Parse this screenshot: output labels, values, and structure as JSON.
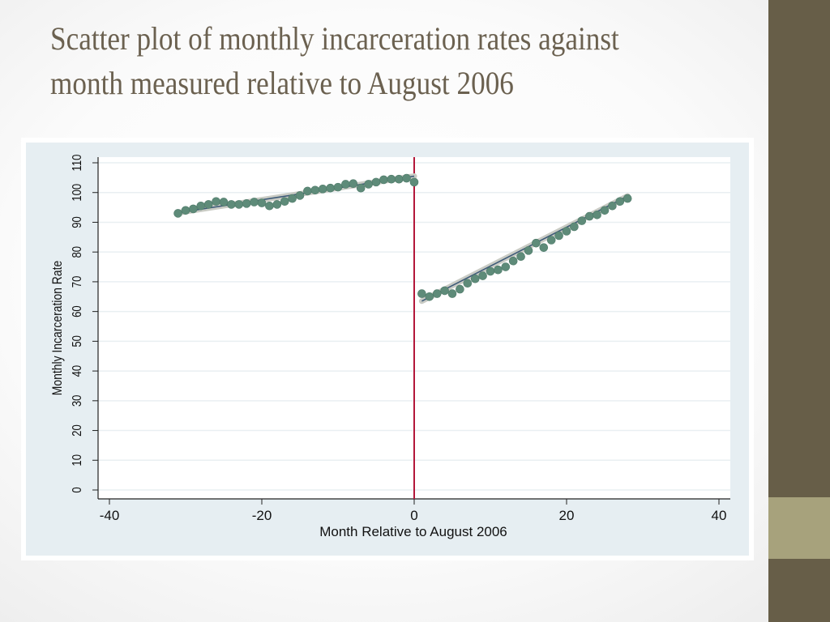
{
  "slide": {
    "title": "Scatter plot of monthly incarceration rates against month measured relative to August 2006",
    "colors": {
      "title": "#6b6150",
      "sidebar": "#675e48",
      "sidebar_accent": "#a7a27c",
      "chart_background": "#e6eef2",
      "plot_background": "#ffffff",
      "marker": "#5e8b79",
      "cutoff_line": "#b3173a"
    }
  },
  "chart_data": {
    "type": "scatter",
    "title": "",
    "xlabel": "Month Relative to August 2006",
    "ylabel": "Monthly Incarceration Rate",
    "xlim": [
      -40,
      40
    ],
    "ylim": [
      0,
      110
    ],
    "xticks": [
      -40,
      -20,
      0,
      20,
      40
    ],
    "yticks": [
      0,
      10,
      20,
      30,
      40,
      50,
      60,
      70,
      80,
      90,
      100,
      110
    ],
    "grid": true,
    "legend": "none",
    "vertical_line": {
      "x": 0,
      "color": "#b3173a"
    },
    "series": [
      {
        "points": [
          [
            -31,
            93.0
          ],
          [
            -30,
            94.0
          ],
          [
            -29,
            94.5
          ],
          [
            -28,
            95.5
          ],
          [
            -27,
            96.0
          ],
          [
            -26,
            97.0
          ],
          [
            -25,
            96.8
          ],
          [
            -24,
            96.0
          ],
          [
            -23,
            96.0
          ],
          [
            -22,
            96.3
          ],
          [
            -21,
            96.8
          ],
          [
            -20,
            96.5
          ],
          [
            -19,
            95.5
          ],
          [
            -18,
            96.0
          ],
          [
            -17,
            97.0
          ],
          [
            -16,
            98.0
          ],
          [
            -15,
            99.0
          ],
          [
            -14,
            100.5
          ],
          [
            -13,
            100.8
          ],
          [
            -12,
            101.2
          ],
          [
            -11,
            101.5
          ],
          [
            -10,
            101.8
          ],
          [
            -9,
            102.8
          ],
          [
            -8,
            103.0
          ],
          [
            -7,
            101.5
          ],
          [
            -6,
            102.8
          ],
          [
            -5,
            103.5
          ],
          [
            -4,
            104.3
          ],
          [
            -3,
            104.5
          ],
          [
            -2,
            104.5
          ],
          [
            -1,
            104.8
          ],
          [
            0,
            103.5
          ]
        ],
        "fit": [
          [
            -31,
            93.2
          ],
          [
            0,
            105.5
          ]
        ]
      },
      {
        "points": [
          [
            1,
            66.0
          ],
          [
            2,
            65.0
          ],
          [
            3,
            66.0
          ],
          [
            4,
            67.0
          ],
          [
            5,
            66.0
          ],
          [
            6,
            67.5
          ],
          [
            7,
            69.5
          ],
          [
            8,
            71.0
          ],
          [
            9,
            72.0
          ],
          [
            10,
            73.5
          ],
          [
            11,
            74.0
          ],
          [
            12,
            75.0
          ],
          [
            13,
            77.0
          ],
          [
            14,
            78.5
          ],
          [
            15,
            80.5
          ],
          [
            16,
            83.0
          ],
          [
            17,
            81.5
          ],
          [
            18,
            84.0
          ],
          [
            19,
            85.5
          ],
          [
            20,
            87.0
          ],
          [
            21,
            88.5
          ],
          [
            22,
            90.5
          ],
          [
            23,
            92.0
          ],
          [
            24,
            92.5
          ],
          [
            25,
            94.0
          ],
          [
            26,
            95.5
          ],
          [
            27,
            97.0
          ],
          [
            28,
            98.0
          ]
        ],
        "fit": [
          [
            1,
            63.5
          ],
          [
            28,
            98.8
          ]
        ]
      }
    ]
  }
}
